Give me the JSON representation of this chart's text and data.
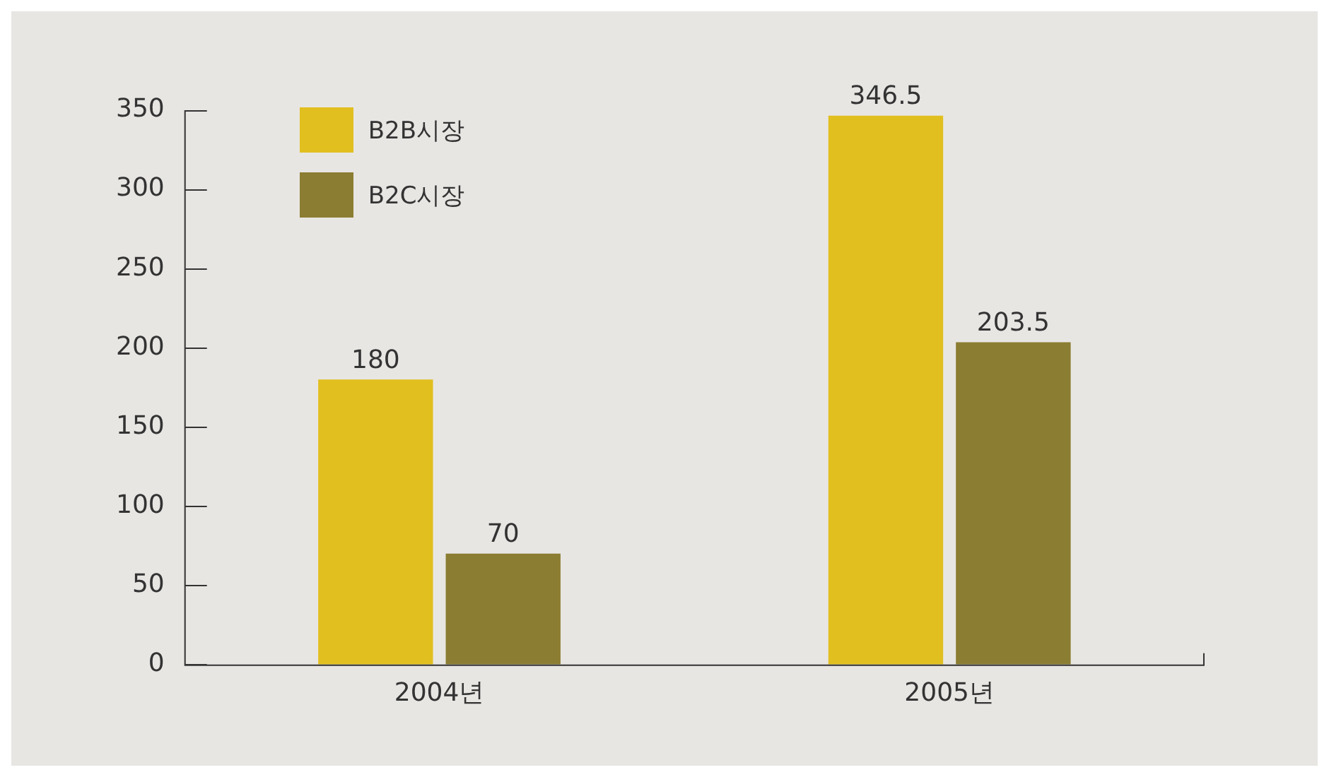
{
  "chart_data": {
    "type": "bar",
    "categories": [
      "2004년",
      "2005년"
    ],
    "series": [
      {
        "name": "B2B시장",
        "color": "#e1bf1f",
        "values": [
          180,
          346.5
        ]
      },
      {
        "name": "B2C시장",
        "color": "#8b7d31",
        "values": [
          70,
          203.5
        ]
      }
    ],
    "ylim": [
      0,
      350
    ],
    "yticks": [
      0,
      50,
      100,
      150,
      200,
      250,
      300,
      350
    ],
    "grid": false,
    "legend": "top left",
    "data_labels": true
  }
}
